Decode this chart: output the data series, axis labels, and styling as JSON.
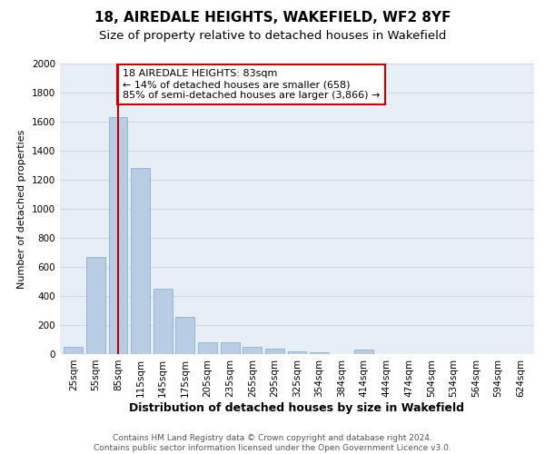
{
  "title1": "18, AIREDALE HEIGHTS, WAKEFIELD, WF2 8YF",
  "title2": "Size of property relative to detached houses in Wakefield",
  "xlabel": "Distribution of detached houses by size in Wakefield",
  "ylabel": "Number of detached properties",
  "categories": [
    "25sqm",
    "55sqm",
    "85sqm",
    "115sqm",
    "145sqm",
    "175sqm",
    "205sqm",
    "235sqm",
    "265sqm",
    "295sqm",
    "325sqm",
    "354sqm",
    "384sqm",
    "414sqm",
    "444sqm",
    "474sqm",
    "504sqm",
    "534sqm",
    "564sqm",
    "594sqm",
    "624sqm"
  ],
  "values": [
    52,
    668,
    1630,
    1280,
    450,
    255,
    80,
    80,
    50,
    35,
    20,
    15,
    0,
    30,
    0,
    0,
    0,
    0,
    0,
    0,
    0
  ],
  "bar_color": "#b8cce4",
  "bar_edge_color": "#7ba7c9",
  "highlight_bar_index": 2,
  "highlight_color": "#cc0000",
  "annotation_text": "18 AIREDALE HEIGHTS: 83sqm\n← 14% of detached houses are smaller (658)\n85% of semi-detached houses are larger (3,866) →",
  "annotation_box_color": "#ffffff",
  "annotation_box_edge_color": "#cc0000",
  "ylim": [
    0,
    2000
  ],
  "yticks": [
    0,
    200,
    400,
    600,
    800,
    1000,
    1200,
    1400,
    1600,
    1800,
    2000
  ],
  "grid_color": "#d0d8e8",
  "plot_bg_color": "#e8eef6",
  "footer_text": "Contains HM Land Registry data © Crown copyright and database right 2024.\nContains public sector information licensed under the Open Government Licence v3.0.",
  "title1_fontsize": 11,
  "title2_fontsize": 9.5,
  "xlabel_fontsize": 9,
  "ylabel_fontsize": 8,
  "tick_fontsize": 7.5,
  "annotation_fontsize": 8,
  "footer_fontsize": 6.5
}
